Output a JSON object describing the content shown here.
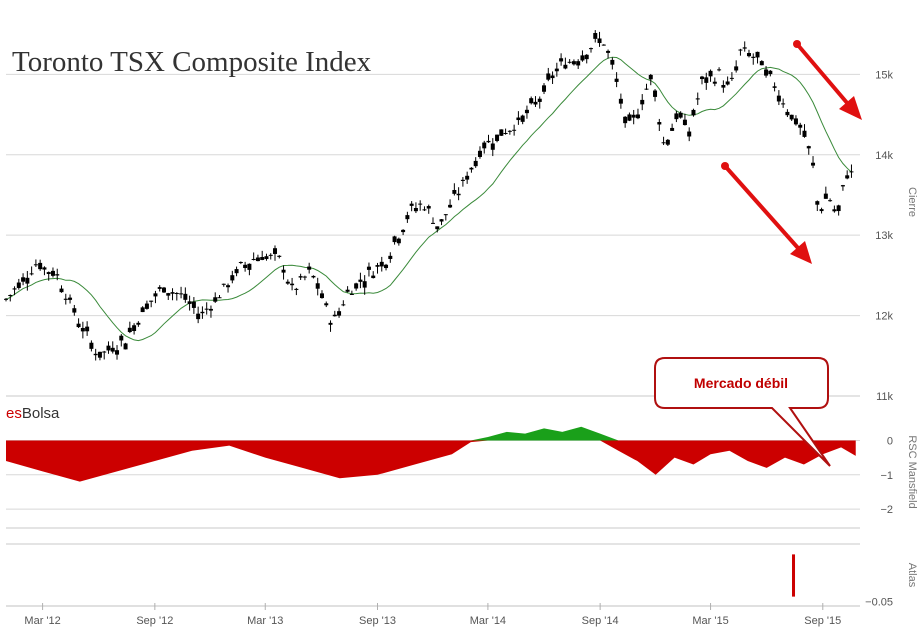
{
  "colors": {
    "candle": "#000000",
    "sma": "#3a8a3a",
    "rsc_negative": "#cc0000",
    "rsc_positive": "#1aa01a",
    "arrow": "#e01010",
    "atlas_bar": "#cc0000",
    "brand_es": "#cc0000",
    "brand_bolsa": "#333333",
    "gridline": "#d8d8d8"
  },
  "chart_data": [
    {
      "type": "candlestick",
      "panel": "price",
      "title": "Toronto TSX Composite Index",
      "ylabel": "Cierre",
      "ylim": [
        11000,
        15800
      ],
      "yticks": [
        {
          "value": 11000,
          "label": "11k"
        },
        {
          "value": 12000,
          "label": "12k"
        },
        {
          "value": 13000,
          "label": "13k"
        },
        {
          "value": 14000,
          "label": "14k"
        },
        {
          "value": 15000,
          "label": "15k"
        }
      ],
      "x_dates": [
        "2012-03",
        "2012-09",
        "2013-03",
        "2013-09",
        "2014-03",
        "2014-09",
        "2015-03",
        "2015-09"
      ],
      "x_labels": [
        "Mar '12",
        "Sep '12",
        "Mar '13",
        "Sep '13",
        "Mar '14",
        "Sep '14",
        "Mar '15",
        "Sep '15"
      ],
      "xlim": [
        "2012-01-01",
        "2015-11-01"
      ],
      "close_anchors": [
        [
          "2012-01-01",
          12200
        ],
        [
          "2012-02-20",
          12650
        ],
        [
          "2012-03-25",
          12500
        ],
        [
          "2012-05-01",
          11900
        ],
        [
          "2012-06-01",
          11500
        ],
        [
          "2012-07-15",
          11700
        ],
        [
          "2012-08-15",
          12100
        ],
        [
          "2012-09-15",
          12350
        ],
        [
          "2012-10-15",
          12250
        ],
        [
          "2012-11-15",
          12000
        ],
        [
          "2012-12-20",
          12300
        ],
        [
          "2013-01-20",
          12600
        ],
        [
          "2013-02-20",
          12750
        ],
        [
          "2013-03-25",
          12700
        ],
        [
          "2013-04-15",
          12300
        ],
        [
          "2013-05-15",
          12550
        ],
        [
          "2013-06-20",
          11900
        ],
        [
          "2013-07-15",
          12300
        ],
        [
          "2013-08-15",
          12500
        ],
        [
          "2013-09-15",
          12700
        ],
        [
          "2013-10-25",
          13300
        ],
        [
          "2013-11-15",
          13400
        ],
        [
          "2013-12-10",
          13100
        ],
        [
          "2014-01-20",
          13650
        ],
        [
          "2014-02-20",
          14100
        ],
        [
          "2014-03-20",
          14250
        ],
        [
          "2014-04-20",
          14400
        ],
        [
          "2014-05-20",
          14650
        ],
        [
          "2014-06-25",
          15100
        ],
        [
          "2014-07-25",
          15200
        ],
        [
          "2014-08-25",
          15400
        ],
        [
          "2014-09-05",
          15450
        ],
        [
          "2014-09-25",
          15000
        ],
        [
          "2014-10-15",
          14300
        ],
        [
          "2014-11-05",
          14600
        ],
        [
          "2014-11-25",
          15000
        ],
        [
          "2014-12-15",
          14100
        ],
        [
          "2015-01-05",
          14500
        ],
        [
          "2015-01-25",
          14300
        ],
        [
          "2015-02-15",
          14900
        ],
        [
          "2015-03-15",
          15000
        ],
        [
          "2015-04-01",
          14800
        ],
        [
          "2015-04-20",
          15300
        ],
        [
          "2015-05-15",
          15200
        ],
        [
          "2015-06-15",
          14850
        ],
        [
          "2015-07-10",
          14500
        ],
        [
          "2015-07-30",
          14300
        ],
        [
          "2015-08-15",
          13900
        ],
        [
          "2015-08-25",
          13300
        ],
        [
          "2015-09-10",
          13500
        ],
        [
          "2015-09-25",
          13200
        ],
        [
          "2015-10-10",
          13800
        ],
        [
          "2015-10-20",
          13750
        ]
      ],
      "series": [
        {
          "name": "close"
        },
        {
          "name": "SMA"
        }
      ]
    },
    {
      "type": "area",
      "panel": "rsc",
      "ylabel": "RSC Mansfield",
      "ylim": [
        -2.2,
        0.45
      ],
      "yticks": [
        {
          "value": 0,
          "label": "0"
        },
        {
          "value": -1,
          "label": "−1"
        },
        {
          "value": -2,
          "label": "−2"
        }
      ],
      "x": [
        "2012-01-01",
        "2012-03-01",
        "2012-05-01",
        "2012-07-01",
        "2012-09-01",
        "2012-11-01",
        "2013-01-01",
        "2013-03-01",
        "2013-05-01",
        "2013-07-01",
        "2013-09-01",
        "2013-11-01",
        "2014-01-01",
        "2014-02-01",
        "2014-03-01",
        "2014-04-01",
        "2014-05-01",
        "2014-06-01",
        "2014-07-01",
        "2014-08-01",
        "2014-09-01",
        "2014-10-01",
        "2014-11-01",
        "2014-12-01",
        "2015-01-01",
        "2015-02-01",
        "2015-03-01",
        "2015-04-01",
        "2015-05-01",
        "2015-06-01",
        "2015-07-01",
        "2015-08-01",
        "2015-09-01",
        "2015-10-01",
        "2015-10-25"
      ],
      "values": [
        -0.6,
        -0.9,
        -1.2,
        -0.9,
        -0.6,
        -0.3,
        -0.15,
        -0.5,
        -0.8,
        -1.1,
        -1.0,
        -0.7,
        -0.4,
        -0.05,
        0.1,
        0.25,
        0.2,
        0.35,
        0.25,
        0.4,
        0.2,
        -0.3,
        -0.6,
        -1.0,
        -0.5,
        -0.7,
        -0.4,
        -0.3,
        -0.6,
        -0.8,
        -0.5,
        -0.7,
        -0.4,
        -0.2,
        -0.45
      ]
    },
    {
      "type": "bar",
      "panel": "atlas",
      "ylabel": "Atlas",
      "ylim": [
        -0.055,
        0.01
      ],
      "yticks": [
        {
          "value": -0.05,
          "label": "−0.05"
        }
      ],
      "x": [
        "2015-07-15"
      ],
      "values": [
        -0.045
      ]
    }
  ],
  "brand": {
    "es": "es",
    "bolsa": "Bolsa"
  },
  "annotations": {
    "callout": "Mercado débil"
  }
}
